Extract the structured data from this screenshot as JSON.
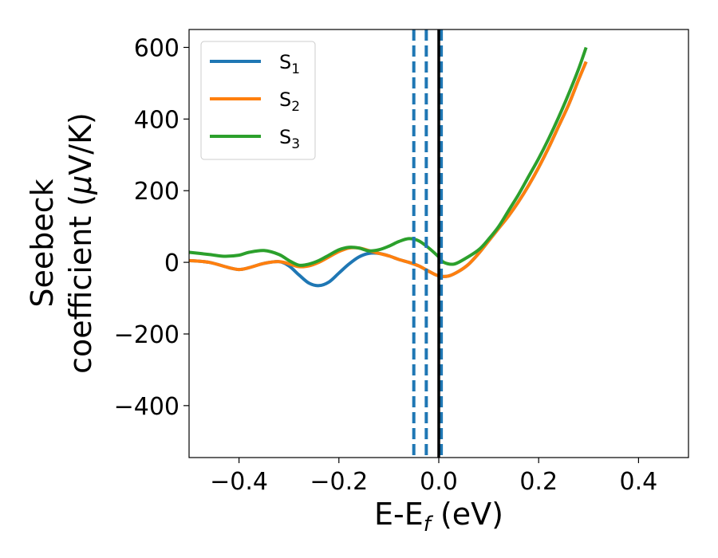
{
  "chart_data": {
    "type": "line",
    "title": "",
    "xlabel": {
      "main": "E-E",
      "sub": "f",
      "suffix": " (eV)"
    },
    "ylabel": {
      "line1": "Seebeck",
      "line2_prefix": "coefficient  (",
      "mu": "μ",
      "line2_suffix": "V/K)"
    },
    "xlim": [
      -0.5,
      0.5
    ],
    "ylim": [
      -545,
      650
    ],
    "xticks": [
      -0.4,
      -0.2,
      0.0,
      0.2,
      0.4
    ],
    "xtick_labels": [
      "−0.4",
      "−0.2",
      "0.0",
      "0.2",
      "0.4"
    ],
    "yticks": [
      600,
      400,
      200,
      0,
      -200,
      -400
    ],
    "ytick_labels": [
      "600",
      "400",
      "200",
      "0",
      "−200",
      "−400"
    ],
    "grid": false,
    "legend_position": "top-left",
    "vlines": [
      {
        "x": -0.05,
        "style": "dashed",
        "color": "#1f77b4"
      },
      {
        "x": -0.025,
        "style": "dashed",
        "color": "#1f77b4"
      },
      {
        "x": 0.005,
        "style": "dashed",
        "color": "#1f77b4"
      },
      {
        "x": 0.0,
        "style": "solid",
        "color": "#000000"
      }
    ],
    "series": [
      {
        "name": "S",
        "sub": "1",
        "color": "#1f77b4",
        "x": [
          -0.5,
          -0.46,
          -0.42,
          -0.4,
          -0.38,
          -0.35,
          -0.32,
          -0.3,
          -0.28,
          -0.26,
          -0.24,
          -0.22,
          -0.2,
          -0.18,
          -0.16,
          -0.14,
          -0.12,
          -0.1,
          -0.08,
          -0.06,
          -0.04,
          -0.02,
          0.0,
          0.02,
          0.04,
          0.06,
          0.08,
          0.1,
          0.12,
          0.14,
          0.16,
          0.18,
          0.2,
          0.22,
          0.24,
          0.26,
          0.28,
          0.295
        ],
        "y": [
          5,
          0,
          -15,
          -20,
          -15,
          -3,
          2,
          -10,
          -35,
          -58,
          -65,
          -55,
          -30,
          -5,
          15,
          25,
          25,
          18,
          8,
          0,
          -10,
          -25,
          -38,
          -38,
          -25,
          -5,
          25,
          60,
          95,
          130,
          170,
          215,
          265,
          320,
          380,
          440,
          510,
          560
        ]
      },
      {
        "name": "S",
        "sub": "2",
        "color": "#ff7f0e",
        "x": [
          -0.5,
          -0.46,
          -0.42,
          -0.4,
          -0.38,
          -0.35,
          -0.32,
          -0.3,
          -0.28,
          -0.26,
          -0.24,
          -0.22,
          -0.2,
          -0.18,
          -0.16,
          -0.14,
          -0.12,
          -0.1,
          -0.08,
          -0.06,
          -0.04,
          -0.02,
          0.0,
          0.02,
          0.04,
          0.06,
          0.08,
          0.1,
          0.12,
          0.14,
          0.16,
          0.18,
          0.2,
          0.22,
          0.24,
          0.26,
          0.28,
          0.295
        ],
        "y": [
          5,
          0,
          -15,
          -20,
          -15,
          -3,
          2,
          -4,
          -12,
          -10,
          0,
          15,
          30,
          40,
          40,
          33,
          25,
          18,
          8,
          0,
          -10,
          -25,
          -38,
          -38,
          -25,
          -5,
          25,
          60,
          95,
          130,
          170,
          215,
          265,
          320,
          380,
          440,
          510,
          560
        ]
      },
      {
        "name": "S",
        "sub": "3",
        "color": "#2ca02c",
        "x": [
          -0.5,
          -0.46,
          -0.43,
          -0.4,
          -0.38,
          -0.35,
          -0.32,
          -0.3,
          -0.28,
          -0.26,
          -0.24,
          -0.22,
          -0.2,
          -0.18,
          -0.16,
          -0.14,
          -0.12,
          -0.1,
          -0.08,
          -0.06,
          -0.04,
          -0.02,
          0.0,
          0.01,
          0.03,
          0.05,
          0.08,
          0.1,
          0.12,
          0.14,
          0.16,
          0.18,
          0.2,
          0.22,
          0.24,
          0.26,
          0.28,
          0.295
        ],
        "y": [
          28,
          22,
          17,
          20,
          28,
          33,
          22,
          5,
          -8,
          -5,
          5,
          20,
          35,
          42,
          40,
          32,
          35,
          45,
          58,
          66,
          60,
          40,
          15,
          0,
          -5,
          8,
          35,
          65,
          100,
          145,
          190,
          240,
          290,
          345,
          405,
          470,
          540,
          600
        ]
      }
    ]
  }
}
